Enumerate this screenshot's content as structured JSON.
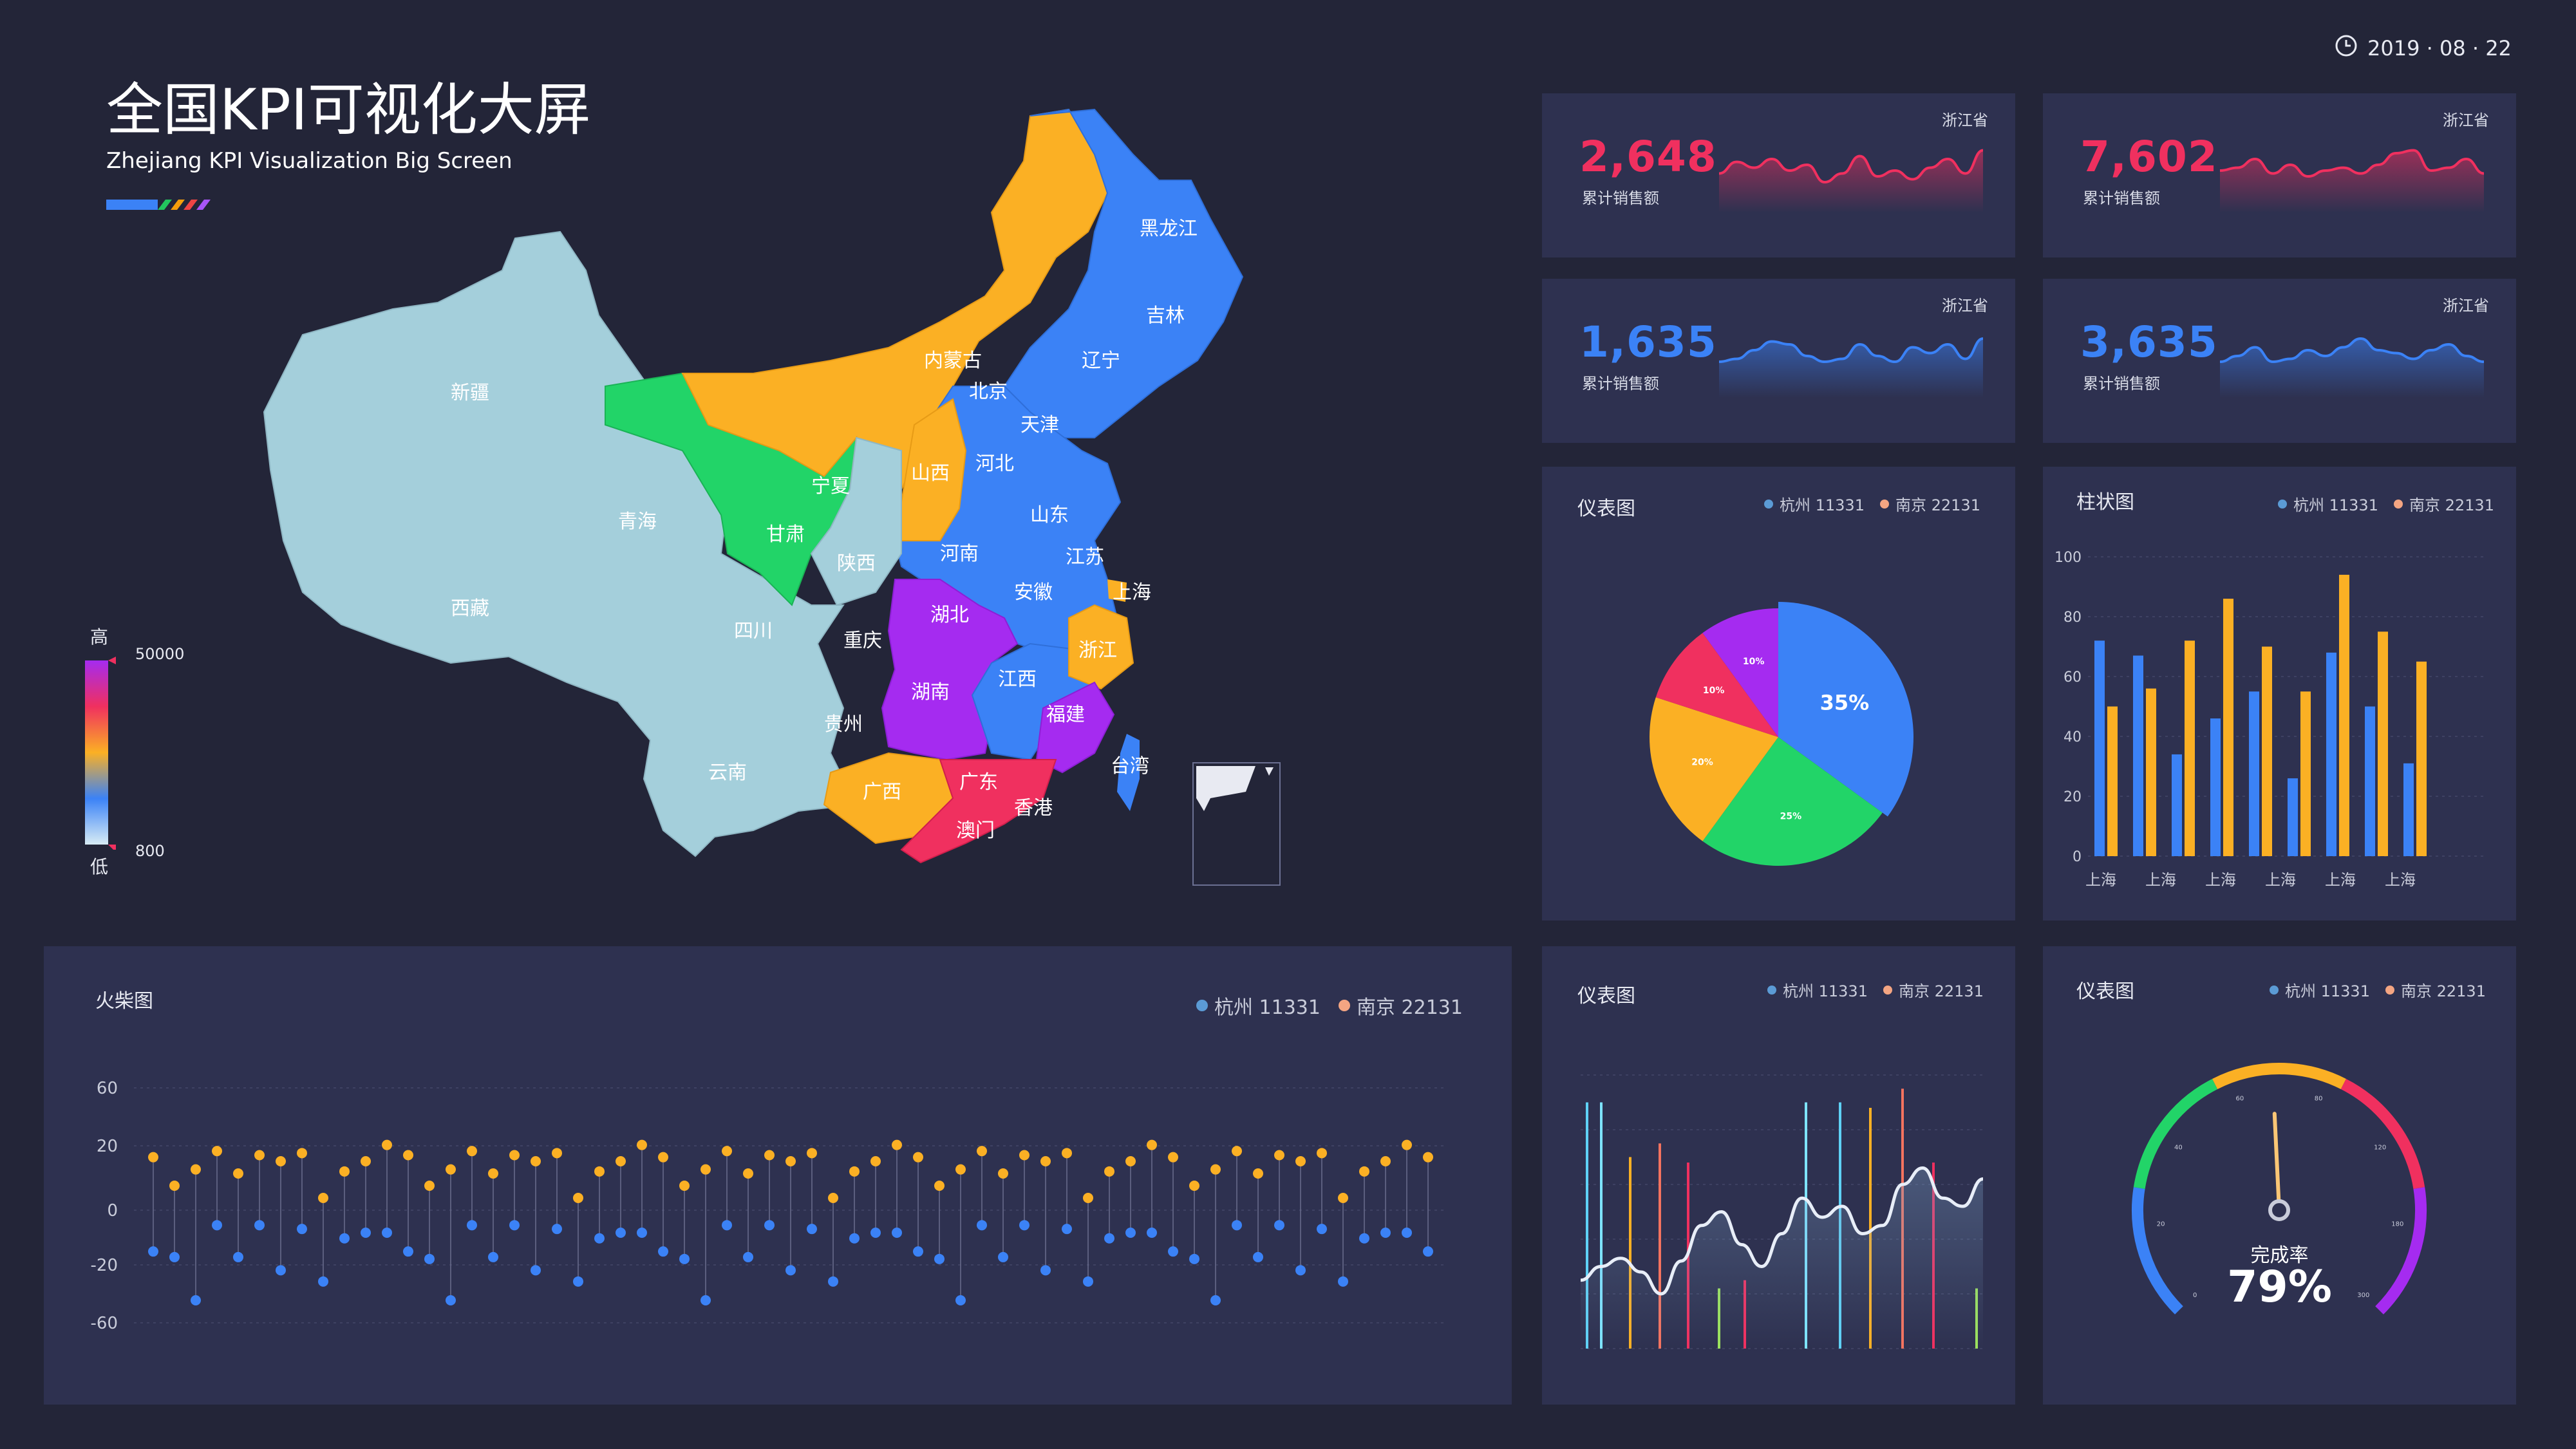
{
  "header": {
    "title": "全国KPI可视化大屏",
    "subtitle": "Zhejiang KPI Visualization Big Screen",
    "date": "2019 · 08 · 22",
    "stripe_colors": [
      "#3b82f6",
      "#3b82f6",
      "#22c55e",
      "#f59e0b",
      "#ef4444",
      "#a855f7"
    ]
  },
  "map": {
    "scale_high_label": "高",
    "scale_low_label": "低",
    "scale_max": "50000",
    "scale_min": "800",
    "provinces": [
      "新疆",
      "西藏",
      "青海",
      "甘肃",
      "宁夏",
      "内蒙古",
      "黑龙江",
      "吉林",
      "辽宁",
      "北京",
      "天津",
      "河北",
      "山西",
      "陕西",
      "山东",
      "河南",
      "江苏",
      "上海",
      "安徽",
      "湖北",
      "重庆",
      "四川",
      "贵州",
      "云南",
      "湖南",
      "江西",
      "浙江",
      "福建",
      "广西",
      "广东",
      "香港",
      "澳门",
      "台湾"
    ]
  },
  "kpis": [
    {
      "value": "2,648",
      "label": "累计销售额",
      "province": "浙江省",
      "color": "#f0305f"
    },
    {
      "value": "7,602",
      "label": "累计销售额",
      "province": "浙江省",
      "color": "#f0305f"
    },
    {
      "value": "1,635",
      "label": "累计销售额",
      "province": "浙江省",
      "color": "#3b82f6"
    },
    {
      "value": "3,635",
      "label": "累计销售额",
      "province": "浙江省",
      "color": "#3b82f6"
    }
  ],
  "legend": {
    "a": "杭州 11331",
    "b": "南京 22131",
    "a_color": "#5b9bd5",
    "b_color": "#f4a582"
  },
  "panels": {
    "pie_title": "仪表图",
    "bar_title": "柱状图",
    "lollipop_title": "火柴图",
    "line_title": "仪表图",
    "gauge_title": "仪表图",
    "gauge_label": "完成率",
    "gauge_value": "79%"
  },
  "chart_data": [
    {
      "id": "pie",
      "type": "pie",
      "slices": [
        {
          "label": "35%",
          "value": 35,
          "color": "#3b82f6"
        },
        {
          "label": "25%",
          "value": 25,
          "color": "#22d468"
        },
        {
          "label": "20%",
          "value": 20,
          "color": "#fbb024"
        },
        {
          "label": "10%",
          "value": 10,
          "color": "#f0305f"
        },
        {
          "label": "10%",
          "value": 10,
          "color": "#a52bf0"
        }
      ]
    },
    {
      "id": "bar",
      "type": "bar",
      "categories": [
        "上海",
        "上海",
        "上海",
        "上海",
        "上海",
        "上海",
        "上海",
        "上海",
        "上海",
        "上海"
      ],
      "x_tick_labels": [
        "上海",
        "上海",
        "上海",
        "上海",
        "上海",
        "上海"
      ],
      "ylim": [
        0,
        100
      ],
      "yticks": [
        0,
        20,
        40,
        60,
        80,
        100
      ],
      "series": [
        {
          "color": "#3b82f6",
          "values": [
            72,
            67,
            34,
            46,
            55,
            26,
            68,
            50,
            31,
            0
          ]
        },
        {
          "color": "#fbb024",
          "values": [
            50,
            56,
            72,
            86,
            70,
            55,
            94,
            75,
            65,
            0
          ]
        }
      ]
    },
    {
      "id": "lollipop",
      "type": "scatter",
      "yticks": [
        60,
        20,
        0,
        -20,
        -60
      ],
      "series": [
        {
          "color": "#fbb024",
          "values": [
            26,
            12,
            20,
            29,
            18,
            27,
            24,
            28,
            6,
            19,
            24,
            32,
            27,
            12,
            20,
            29,
            18,
            27,
            24,
            28,
            6,
            19,
            24,
            32,
            26,
            12,
            20,
            29,
            18,
            27,
            24,
            28,
            6,
            19,
            24,
            32,
            26,
            12,
            20,
            29,
            18,
            27,
            24,
            28,
            6,
            19,
            24,
            32,
            26,
            12,
            20,
            29,
            18,
            27,
            24,
            28,
            6,
            19,
            24,
            32,
            26
          ]
        },
        {
          "color": "#3b82f6",
          "values": [
            -22,
            -25,
            -48,
            -8,
            -25,
            -8,
            -32,
            -10,
            -38,
            -15,
            -12,
            -12,
            -22,
            -26,
            -48,
            -8,
            -25,
            -8,
            -32,
            -10,
            -38,
            -15,
            -12,
            -12,
            -22,
            -26,
            -48,
            -8,
            -25,
            -8,
            -32,
            -10,
            -38,
            -15,
            -12,
            -12,
            -22,
            -26,
            -48,
            -8,
            -25,
            -8,
            -32,
            -10,
            -38,
            -15,
            -12,
            -12,
            -22,
            -26,
            -48,
            -8,
            -25,
            -8,
            -32,
            -10,
            -38,
            -15,
            -12,
            -12,
            -22
          ]
        }
      ]
    },
    {
      "id": "line",
      "type": "line",
      "line": [
        25,
        30,
        33,
        28,
        20,
        32,
        45,
        50,
        38,
        30,
        42,
        55,
        48,
        52,
        42,
        45,
        60,
        66,
        55,
        52,
        62
      ],
      "bars": [
        {
          "value": 90,
          "color": "#5fd1f5"
        },
        {
          "value": 90,
          "color": "#7ee4ff"
        },
        {
          "value": 70,
          "color": "#fbb024"
        },
        {
          "value": 75,
          "color": "#f4735f"
        },
        {
          "value": 68,
          "color": "#f0305f"
        },
        {
          "value": 22,
          "color": "#9be15d"
        },
        {
          "value": 25,
          "color": "#f0305f"
        },
        {
          "value": 90,
          "color": "#7ee4ff"
        },
        {
          "value": 90,
          "color": "#5fd1f5"
        },
        {
          "value": 88,
          "color": "#fbb024"
        },
        {
          "value": 95,
          "color": "#f4735f"
        },
        {
          "value": 68,
          "color": "#f0305f"
        },
        {
          "value": 22,
          "color": "#9be15d"
        }
      ]
    },
    {
      "id": "gauge",
      "type": "gauge",
      "value": 79,
      "ticks": [
        "0",
        "20",
        "40",
        "60",
        "80",
        "120",
        "180",
        "300"
      ],
      "segments": [
        {
          "color": "#3b82f6"
        },
        {
          "color": "#22d468"
        },
        {
          "color": "#fbb024"
        },
        {
          "color": "#f0305f"
        },
        {
          "color": "#a52bf0"
        }
      ]
    }
  ]
}
